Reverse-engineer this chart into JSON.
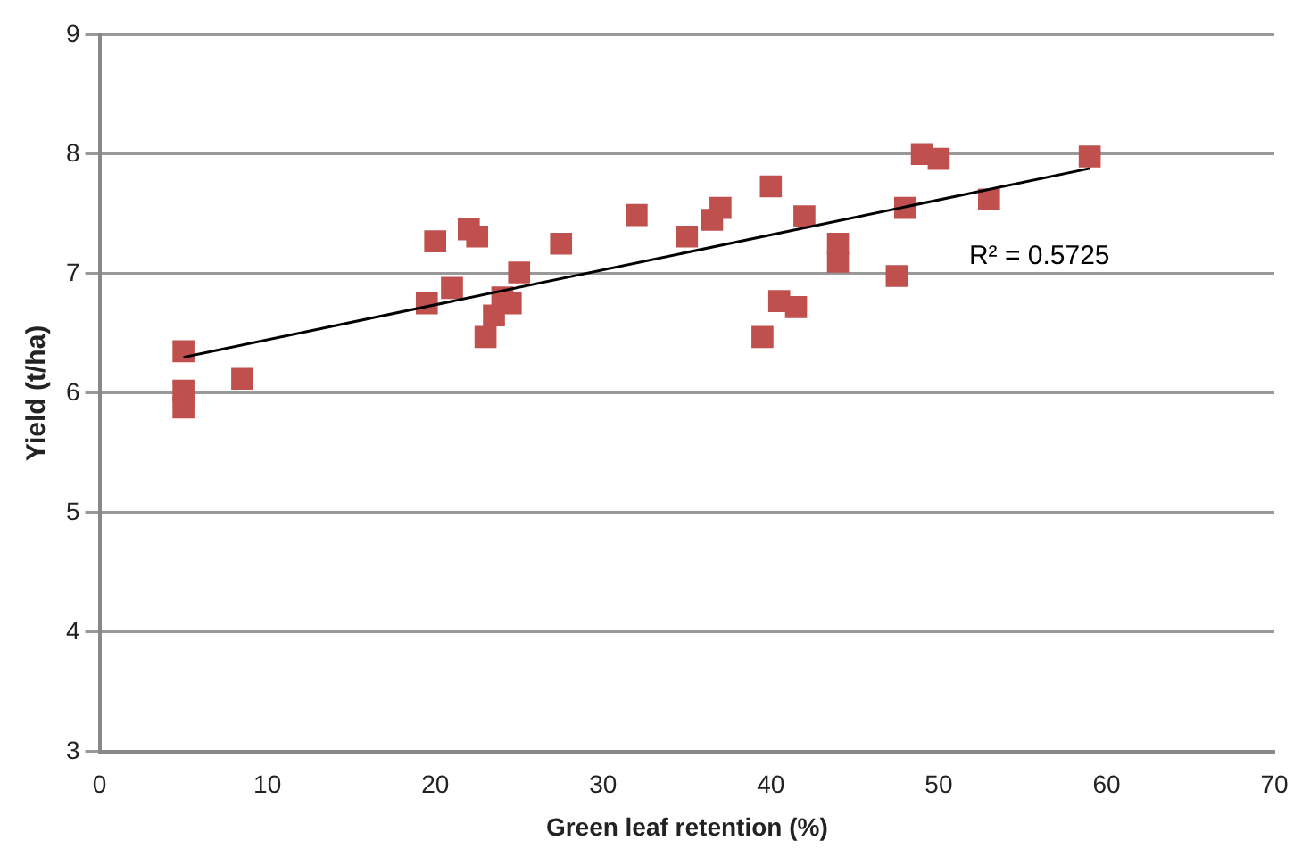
{
  "chart_data": {
    "type": "scatter",
    "xlabel": "Green leaf retention (%)",
    "ylabel": "Yield (t/ha)",
    "xlim": [
      0,
      70
    ],
    "xticks": [
      0,
      10,
      20,
      30,
      40,
      50,
      60,
      70
    ],
    "ylim": [
      3,
      9
    ],
    "yticks": [
      3,
      4,
      5,
      6,
      7,
      8,
      9
    ],
    "grid": "y",
    "legend": false,
    "series": [
      {
        "color": "#c0504d",
        "marker": "square",
        "x": [
          5,
          5,
          5,
          8.5,
          19.5,
          20,
          21,
          22,
          22.5,
          23,
          23.5,
          24,
          24.5,
          25,
          27.5,
          32,
          35,
          36.5,
          37,
          39.5,
          40,
          40.5,
          41.5,
          42,
          44,
          44,
          47.5,
          48,
          49,
          50,
          53,
          59
        ],
        "values": [
          6.35,
          6.02,
          5.88,
          6.12,
          6.75,
          7.27,
          6.88,
          7.37,
          7.31,
          6.47,
          6.65,
          6.8,
          6.75,
          7.01,
          7.25,
          7.49,
          7.31,
          7.45,
          7.55,
          6.47,
          7.73,
          6.77,
          6.72,
          7.48,
          7.25,
          7.1,
          6.98,
          7.55,
          8.0,
          7.96,
          7.62,
          7.98
        ]
      },
      {
        "type": "line",
        "color": "#000000",
        "marker": "none",
        "x": [
          5,
          59
        ],
        "values": [
          6.3,
          7.88
        ]
      }
    ],
    "annotations": [
      "R² = 0.5725"
    ]
  }
}
